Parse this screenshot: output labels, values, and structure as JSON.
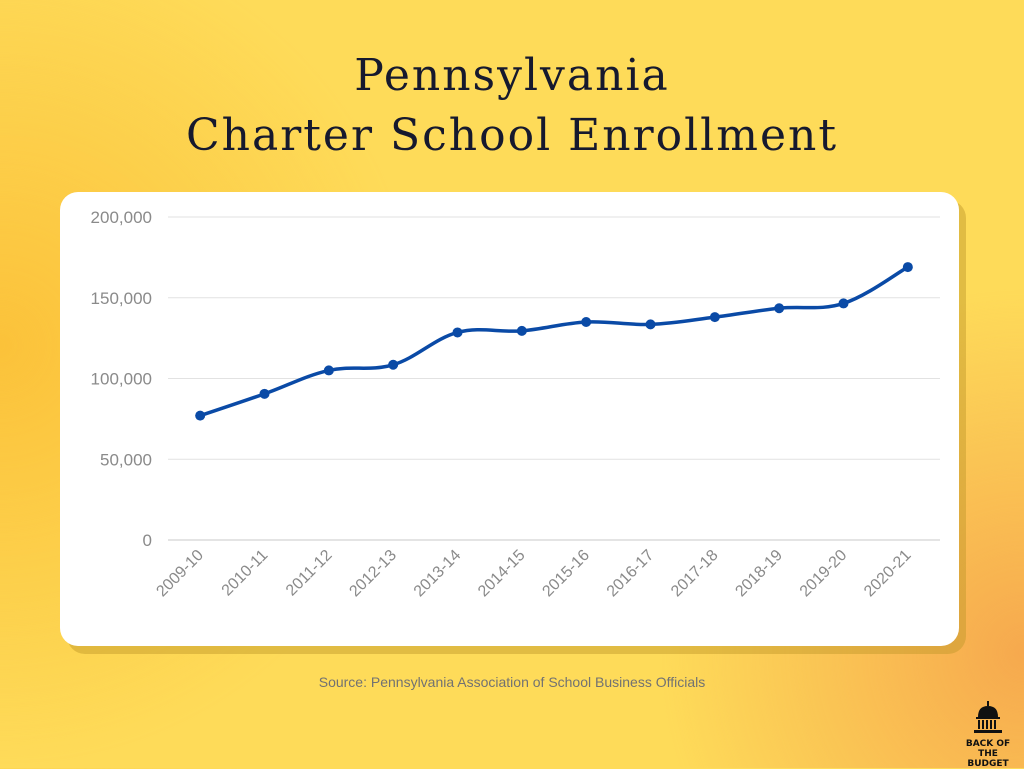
{
  "title": {
    "line1": "Pennsylvania",
    "line2": "Charter School Enrollment"
  },
  "source": "Source: Pennsylvania Association of School Business Officials",
  "logo": {
    "line1": "BACK OF THE",
    "line2": "BUDGET",
    "icon": "capitol-dome-icon"
  },
  "colors": {
    "line": "#0a4aa6",
    "background": "#fedb59",
    "title": "#16192e"
  },
  "chart_data": {
    "type": "line",
    "title": "Pennsylvania Charter School Enrollment",
    "xlabel": "",
    "ylabel": "",
    "ylim": [
      0,
      200000
    ],
    "yticks": [
      "200,000",
      "150,000",
      "100,000",
      "50,000",
      "0"
    ],
    "ytick_values": [
      200000,
      150000,
      100000,
      50000,
      0
    ],
    "grid": true,
    "legend": "none",
    "categories": [
      "2009-10",
      "2010-11",
      "2011-12",
      "2012-13",
      "2013-14",
      "2014-15",
      "2015-16",
      "2016-17",
      "2017-18",
      "2018-19",
      "2019-20",
      "2020-21"
    ],
    "values": [
      77000,
      90500,
      105000,
      108500,
      128500,
      129500,
      135000,
      133500,
      138000,
      143500,
      146500,
      169000
    ]
  }
}
